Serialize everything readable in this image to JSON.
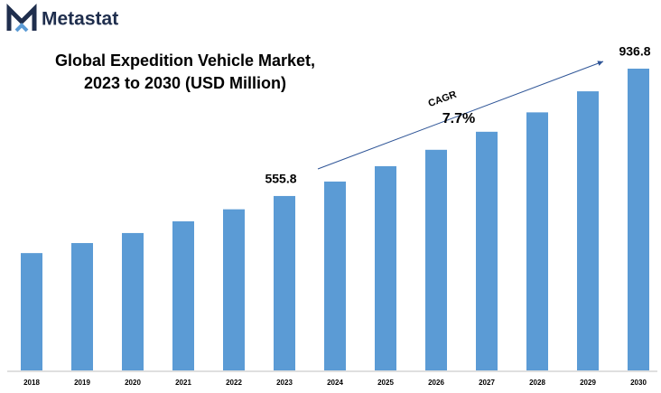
{
  "brand": "Metastat",
  "chart_data": {
    "type": "bar",
    "title_lines": [
      "Global Expedition Vehicle Market,",
      "2023 to 2030 (USD Million)"
    ],
    "categories": [
      "2018",
      "2019",
      "2020",
      "2021",
      "2022",
      "2023",
      "2024",
      "2025",
      "2026",
      "2027",
      "2028",
      "2029",
      "2030"
    ],
    "values": [
      385,
      415,
      445,
      480,
      516,
      555.8,
      599,
      645,
      694,
      748,
      806,
      869,
      936.8
    ],
    "value_labels": [
      null,
      null,
      null,
      null,
      null,
      "555.8",
      null,
      null,
      null,
      null,
      null,
      null,
      "936.8"
    ],
    "color": "#5b9bd5",
    "ylim": [
      34,
      1000
    ],
    "annotation": {
      "label": "CAGR",
      "value": "7.7%"
    }
  }
}
